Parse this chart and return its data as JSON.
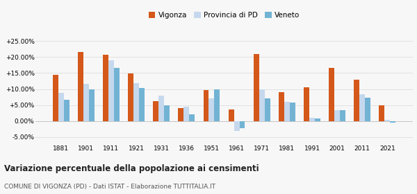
{
  "years": [
    1881,
    1901,
    1911,
    1921,
    1931,
    1936,
    1951,
    1961,
    1971,
    1981,
    1991,
    2001,
    2011,
    2021
  ],
  "vigonza": [
    14.5,
    21.5,
    20.7,
    14.8,
    6.2,
    4.0,
    9.7,
    3.6,
    20.9,
    9.1,
    10.5,
    16.5,
    13.0,
    5.0
  ],
  "provincia_pd": [
    8.8,
    11.7,
    19.0,
    11.9,
    8.0,
    4.5,
    7.2,
    -3.0,
    10.0,
    6.0,
    1.0,
    3.5,
    8.4,
    0.3
  ],
  "veneto": [
    6.7,
    9.9,
    16.5,
    10.4,
    5.0,
    2.2,
    10.0,
    -2.2,
    7.2,
    5.9,
    0.8,
    3.5,
    7.3,
    -0.5
  ],
  "vigonza_color": "#d4581a",
  "provincia_color": "#c5d8ed",
  "veneto_color": "#72b3d4",
  "bg_color": "#f7f7f7",
  "plot_bg": "#ffffff",
  "title": "Variazione percentuale della popolazione ai censimenti",
  "subtitle": "COMUNE DI VIGONZA (PD) - Dati ISTAT - Elaborazione TUTTITALIA.IT",
  "ylim": [
    -7.0,
    27.5
  ],
  "yticks": [
    -5.0,
    0.0,
    5.0,
    10.0,
    15.0,
    20.0,
    25.0
  ],
  "bar_width": 0.22,
  "legend_labels": [
    "Vigonza",
    "Provincia di PD",
    "Veneto"
  ]
}
